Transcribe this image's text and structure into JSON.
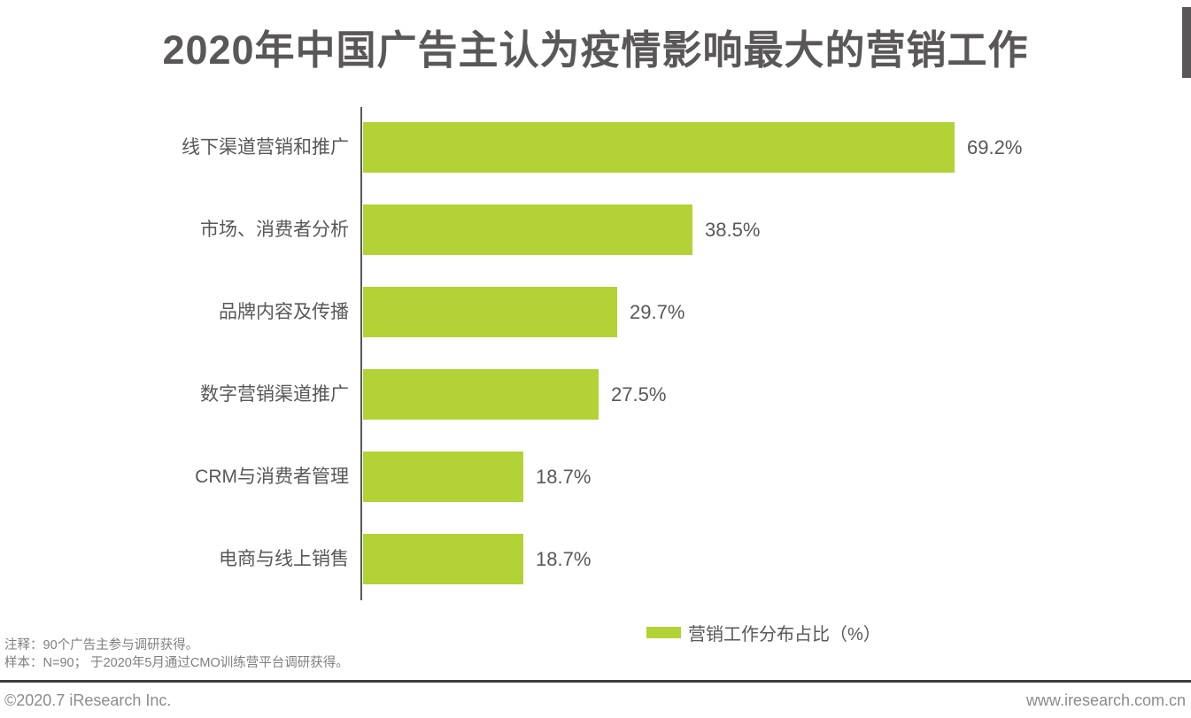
{
  "title": "2020年中国广告主认为疫情影响最大的营销工作",
  "chart_data": {
    "type": "bar",
    "orientation": "horizontal",
    "title": "2020年中国广告主认为疫情影响最大的营销工作",
    "categories": [
      "线下渠道营销和推广",
      "市场、消费者分析",
      "品牌内容及传播",
      "数字营销渠道推广",
      "CRM与消费者管理",
      "电商与线上销售"
    ],
    "values": [
      69.2,
      38.5,
      29.7,
      27.5,
      18.7,
      18.7
    ],
    "value_labels": [
      "69.2%",
      "38.5%",
      "29.7%",
      "27.5%",
      "18.7%",
      "18.7%"
    ],
    "xlabel": "",
    "ylabel": "",
    "xlim": [
      0,
      72
    ],
    "grid": false,
    "legend_entries": [
      "营销工作分布占比（%）"
    ],
    "legend_position": "bottom",
    "bar_color": "#B2D235"
  },
  "legend": {
    "label": "营销工作分布占比（%）",
    "swatch_color": "#B2D235"
  },
  "notes": {
    "line1": "注释：90个广告主参与调研获得。",
    "line2": "样本：N=90； 于2020年5月通过CMO训练营平台调研获得。"
  },
  "footer": {
    "copyright": "©2020.7 iResearch Inc.",
    "website": "www.iresearch.com.cn"
  },
  "colors": {
    "bar": "#B2D235",
    "title_text": "#595757",
    "label_text": "#595757",
    "note_text": "#7f7f7f",
    "footer_text": "#8c8c8c",
    "axis_line": "#595959",
    "divider": "#3e3e3e"
  }
}
